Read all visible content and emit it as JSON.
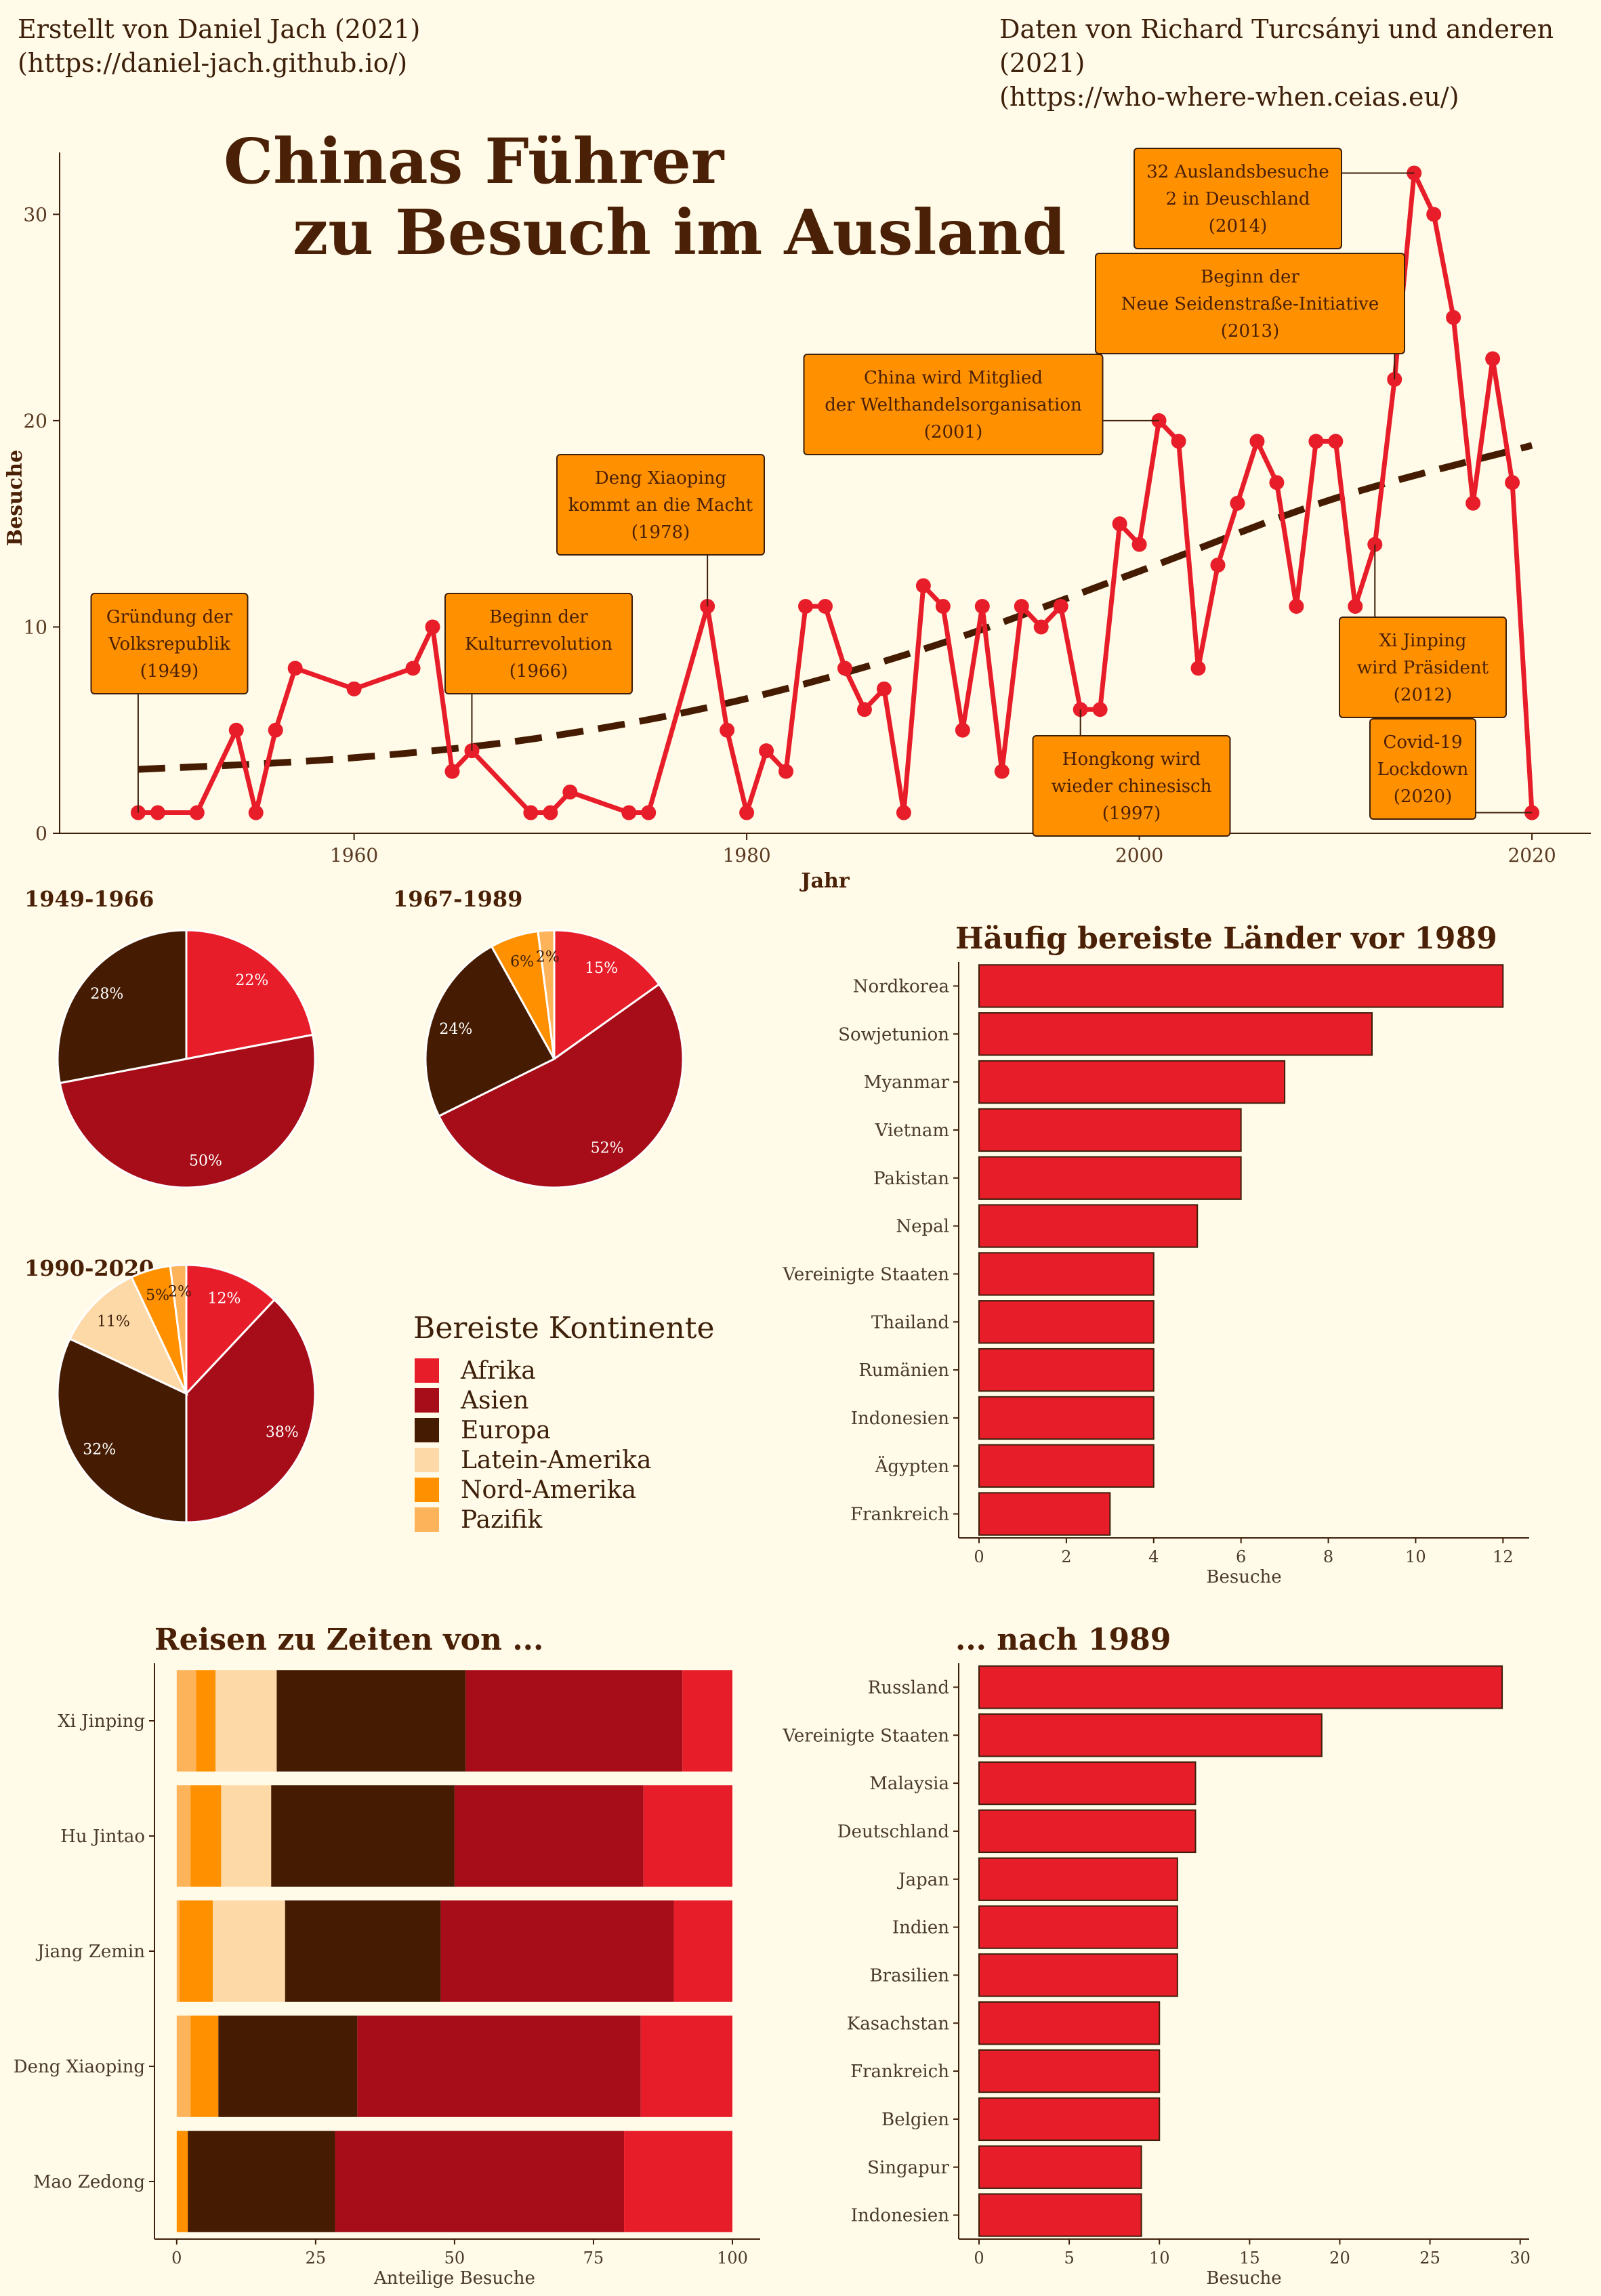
{
  "credits": {
    "left_line1": "Erstellt von Daniel Jach (2021)",
    "left_line2": "(https://daniel-jach.github.io/)",
    "right_line1": "Daten von Richard Turcsányi und anderen (2021)",
    "right_line2": "(https://who-where-when.ceias.eu/)"
  },
  "colors": {
    "background": "#fffbe8",
    "red": "#e81d2a",
    "dark_red": "#a60d18",
    "brown": "#451c02",
    "peach": "#fdd9a8",
    "orange": "#ff9000",
    "light_orange": "#fdb35a",
    "trend": "#451c02",
    "annotation_bg": "#ff9000"
  },
  "chart_data": [
    {
      "id": "timeline",
      "type": "line",
      "title_line1": "Chinas Führer",
      "title_line2": "zu Besuch im Ausland",
      "xlabel": "Jahr",
      "ylabel": "Besuche",
      "xlim": [
        1945,
        2023
      ],
      "ylim": [
        0,
        33
      ],
      "xticks": [
        1960,
        1980,
        2000,
        2020
      ],
      "yticks": [
        0,
        10,
        20,
        30
      ],
      "series": [
        {
          "x": [
            1949,
            1950,
            1952,
            1954,
            1955,
            1956,
            1957,
            1960,
            1963,
            1964,
            1965,
            1966,
            1969,
            1970,
            1971,
            1974,
            1975,
            1978,
            1979,
            1980,
            1981,
            1982,
            1983,
            1984,
            1985,
            1986,
            1987,
            1988,
            1989,
            1990,
            1991,
            1992,
            1993,
            1994,
            1995,
            1996,
            1997,
            1998,
            1999,
            2000,
            2001,
            2002,
            2003,
            2004,
            2005,
            2006,
            2007,
            2008,
            2009,
            2010,
            2011,
            2012,
            2013,
            2014,
            2015,
            2016,
            2017,
            2018,
            2019,
            2020
          ],
          "y": [
            1,
            1,
            1,
            5,
            1,
            5,
            8,
            7,
            8,
            10,
            3,
            4,
            1,
            1,
            2,
            1,
            1,
            11,
            5,
            1,
            4,
            3,
            11,
            11,
            8,
            6,
            7,
            1,
            12,
            11,
            5,
            11,
            3,
            11,
            10,
            11,
            6,
            6,
            15,
            14,
            20,
            19,
            8,
            13,
            16,
            19,
            17,
            11,
            19,
            19,
            11,
            14,
            22,
            32,
            30,
            25,
            16,
            23,
            17,
            1
          ]
        }
      ],
      "trend": {
        "style": "dashed",
        "x": [
          1949,
          2020
        ],
        "curve_y": [
          3.1,
          3.6,
          4.6,
          6.4,
          9.1,
          12.6,
          16.2,
          18.8
        ]
      },
      "annotations": [
        {
          "lines": [
            "Gründung der",
            "Volksrepublik",
            "(1949)"
          ],
          "x": 1949,
          "y": 1
        },
        {
          "lines": [
            "Beginn der",
            "Kulturrevolution",
            "(1966)"
          ],
          "x": 1966,
          "y": 4
        },
        {
          "lines": [
            "Deng Xiaoping",
            "kommt an die Macht",
            "(1978)"
          ],
          "x": 1978,
          "y": 11
        },
        {
          "lines": [
            "Hongkong wird",
            "wieder chinesisch",
            "(1997)"
          ],
          "x": 1997,
          "y": 6
        },
        {
          "lines": [
            "China wird Mitglied",
            "der Welthandelsorganisation",
            "(2001)"
          ],
          "x": 2001,
          "y": 20
        },
        {
          "lines": [
            "Beginn der",
            "Neue Seidenstraße-Initiative",
            "(2013)"
          ],
          "x": 2013,
          "y": 22
        },
        {
          "lines": [
            "32 Auslandsbesuche",
            "2 in Deuschland",
            "(2014)"
          ],
          "x": 2014,
          "y": 32
        },
        {
          "lines": [
            "Xi Jinping",
            "wird Präsident",
            "(2012)"
          ],
          "x": 2012,
          "y": 14
        },
        {
          "lines": [
            "Covid-19",
            "Lockdown",
            "(2020)"
          ],
          "x": 2020,
          "y": 1
        }
      ]
    },
    {
      "id": "pie-1949-1966",
      "type": "pie",
      "title": "1949-1966",
      "slices": [
        {
          "continent": "Afrika",
          "value": 22,
          "label": "22%"
        },
        {
          "continent": "Asien",
          "value": 50,
          "label": "50%"
        },
        {
          "continent": "Europa",
          "value": 28,
          "label": "28%"
        }
      ]
    },
    {
      "id": "pie-1967-1989",
      "type": "pie",
      "title": "1967-1989",
      "slices": [
        {
          "continent": "Afrika",
          "value": 15,
          "label": "15%"
        },
        {
          "continent": "Asien",
          "value": 52,
          "label": "52%"
        },
        {
          "continent": "Europa",
          "value": 24,
          "label": "24%"
        },
        {
          "continent": "Nord-Amerika",
          "value": 6,
          "label": "6%"
        },
        {
          "continent": "Pazifik",
          "value": 2,
          "label": "2%"
        }
      ]
    },
    {
      "id": "pie-1990-2020",
      "type": "pie",
      "title": "1990-2020",
      "slices": [
        {
          "continent": "Afrika",
          "value": 12,
          "label": "12%"
        },
        {
          "continent": "Asien",
          "value": 38,
          "label": "38%"
        },
        {
          "continent": "Europa",
          "value": 32,
          "label": "32%"
        },
        {
          "continent": "Latein-Amerika",
          "value": 11,
          "label": "11%"
        },
        {
          "continent": "Nord-Amerika",
          "value": 5,
          "label": "5%"
        },
        {
          "continent": "Pazifik",
          "value": 2,
          "label": "2%"
        }
      ]
    },
    {
      "id": "bars-before-1989",
      "type": "bar",
      "title": "Häufig bereiste Länder vor 1989",
      "xlabel": "Besuche",
      "xlim": [
        0,
        12.6
      ],
      "xticks": [
        0,
        2,
        4,
        6,
        8,
        10,
        12
      ],
      "categories": [
        "Nordkorea",
        "Sowjetunion",
        "Myanmar",
        "Vietnam",
        "Pakistan",
        "Nepal",
        "Vereinigte Staaten",
        "Thailand",
        "Rumänien",
        "Indonesien",
        "Ägypten",
        "Frankreich"
      ],
      "values": [
        12,
        9,
        7,
        6,
        6,
        5,
        4,
        4,
        4,
        4,
        4,
        3
      ]
    },
    {
      "id": "bars-after-1989",
      "type": "bar",
      "title": "... nach 1989",
      "xlabel": "Besuche",
      "xlim": [
        0,
        30.5
      ],
      "xticks": [
        0,
        5,
        10,
        15,
        20,
        25,
        30
      ],
      "categories": [
        "Russland",
        "Vereinigte Staaten",
        "Malaysia",
        "Deutschland",
        "Japan",
        "Indien",
        "Brasilien",
        "Kasachstan",
        "Frankreich",
        "Belgien",
        "Singapur",
        "Indonesien"
      ],
      "values": [
        29,
        19,
        12,
        12,
        11,
        11,
        11,
        10,
        10,
        10,
        9,
        9
      ]
    },
    {
      "id": "stacked-leaders",
      "type": "bar",
      "stacked": true,
      "title": "Reisen zu Zeiten von ...",
      "xlabel": "Anteilige Besuche",
      "xlim": [
        -4,
        105
      ],
      "xticks": [
        0,
        25,
        50,
        75,
        100
      ],
      "categories": [
        "Xi Jinping",
        "Hu Jintao",
        "Jiang Zemin",
        "Deng Xiaoping",
        "Mao Zedong"
      ],
      "series": [
        {
          "name": "Pazifik",
          "values": [
            3.5,
            2.5,
            0.5,
            2.5,
            0
          ]
        },
        {
          "name": "Nord-Amerika",
          "values": [
            3.5,
            5.5,
            6,
            5,
            2
          ]
        },
        {
          "name": "Latein-Amerika",
          "values": [
            11,
            9,
            13,
            0,
            0
          ]
        },
        {
          "name": "Europa",
          "values": [
            34,
            33,
            28,
            25,
            26.5
          ]
        },
        {
          "name": "Asien",
          "values": [
            39,
            34,
            42,
            51,
            52
          ]
        },
        {
          "name": "Afrika",
          "values": [
            9,
            16,
            10.5,
            16.5,
            19.5
          ]
        }
      ]
    }
  ],
  "legend": {
    "title": "Bereiste Kontinente",
    "items": [
      {
        "label": "Afrika",
        "color": "#e81d2a"
      },
      {
        "label": "Asien",
        "color": "#a60d18"
      },
      {
        "label": "Europa",
        "color": "#451c02"
      },
      {
        "label": "Latein-Amerika",
        "color": "#fdd9a8"
      },
      {
        "label": "Nord-Amerika",
        "color": "#ff9000"
      },
      {
        "label": "Pazifik",
        "color": "#fdb35a"
      }
    ]
  }
}
